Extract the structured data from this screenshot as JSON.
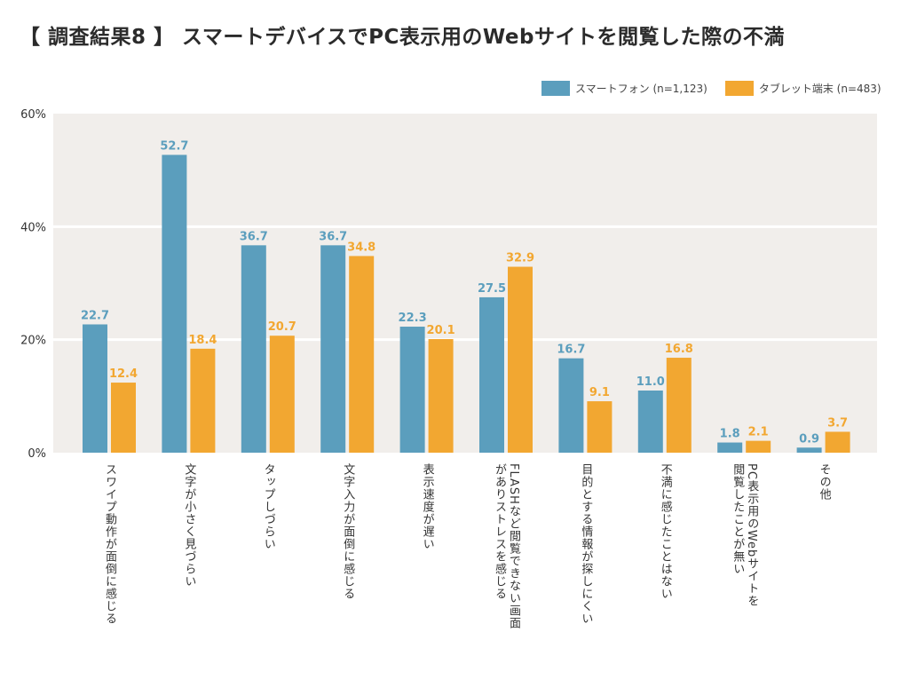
{
  "title": "【 調査結果8 】 スマートデバイスでPC表示用のWebサイトを閲覧した際の不満",
  "colors": {
    "smartphone": "#5b9ebd",
    "tablet": "#f2a731",
    "plot_bg": "#f1eeeb",
    "grid": "#ffffff"
  },
  "legend": [
    {
      "name": "スマートフォン (n=1,123)",
      "color": "#5b9ebd"
    },
    {
      "name": "タブレット端末 (n=483)",
      "color": "#f2a731"
    }
  ],
  "chart_data": {
    "type": "bar",
    "title": "【 調査結果8 】 スマートデバイスでPC表示用のWebサイトを閲覧した際の不満",
    "xlabel": "",
    "ylabel": "",
    "ylim": [
      0,
      60
    ],
    "yticks": [
      "0%",
      "20%",
      "40%",
      "60%"
    ],
    "ytick_values": [
      0,
      20,
      40,
      60
    ],
    "grid": true,
    "legend_position": "top-right",
    "categories": [
      "スワイプ動作が面倒に感じる",
      "文字が小さく見づらい",
      "タップしづらい",
      "文字入力が面倒に感じる",
      "表示速度が遅い",
      "FLASHなど閲覧できない画面\nがありストレスを感じる",
      "目的とする情報が探しにくい",
      "不満に感じたことはない",
      "PC表示用のWebサイトを\n閲覧したことが無い",
      "その他"
    ],
    "series": [
      {
        "name": "スマートフォン (n=1,123)",
        "color": "#5b9ebd",
        "values": [
          22.7,
          52.7,
          36.7,
          36.7,
          22.3,
          27.5,
          16.7,
          11.0,
          1.8,
          0.9
        ]
      },
      {
        "name": "タブレット端末 (n=483)",
        "color": "#f2a731",
        "values": [
          12.4,
          18.4,
          20.7,
          34.8,
          20.1,
          32.9,
          9.1,
          16.8,
          2.1,
          3.7
        ]
      }
    ]
  }
}
